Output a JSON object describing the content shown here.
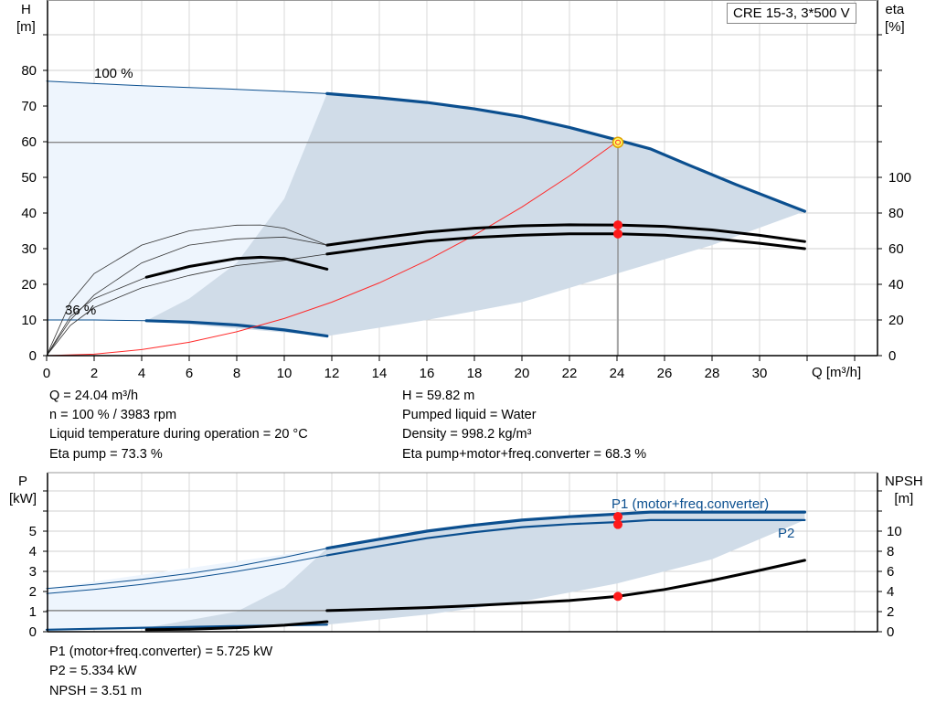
{
  "chart_data": [
    {
      "type": "line",
      "title": "CRE 15-3, 3*500 V",
      "xlabel": "Q [m³/h]",
      "ylabel": "H\n[m]",
      "ylabel_line1": "H",
      "ylabel_line2": "[m]",
      "y2label_line1": "eta",
      "y2label_line2": "[%]",
      "xlim": [
        0,
        35
      ],
      "ylim": [
        0,
        100
      ],
      "y2lim": [
        0,
        200
      ],
      "xticks": [
        0,
        2,
        4,
        6,
        8,
        10,
        12,
        14,
        16,
        18,
        20,
        22,
        24,
        26,
        28,
        30
      ],
      "yticks": [
        0,
        10,
        20,
        30,
        40,
        50,
        60,
        70,
        80
      ],
      "y2ticks": [
        0,
        20,
        40,
        60,
        80,
        100
      ],
      "grid": true,
      "annotations": {
        "speed_max": "100 %",
        "speed_min": "36 %"
      },
      "colors": {
        "head": "#0b4f8f",
        "eta": "#000000",
        "system": "#ff2a2a",
        "operating_region": "#d0dce8",
        "extended_region": "#eef5fd",
        "duty_point": "#ff1a1a",
        "duty_marker": "#ffff66"
      },
      "series": [
        {
          "key": "head_100_thin",
          "axis": "H",
          "style": "thin-blue",
          "points": [
            [
              0,
              77
            ],
            [
              2,
              76.3
            ],
            [
              4,
              75.7
            ],
            [
              6,
              75.2
            ],
            [
              8,
              74.7
            ],
            [
              10,
              74.1
            ],
            [
              11.8,
              73.5
            ]
          ]
        },
        {
          "key": "head_100",
          "axis": "H",
          "style": "thick-blue",
          "points": [
            [
              11.8,
              73.5
            ],
            [
              14,
              72.3
            ],
            [
              16,
              71
            ],
            [
              18,
              69.2
            ],
            [
              20,
              67
            ],
            [
              22,
              64
            ],
            [
              24,
              60.5
            ],
            [
              25.4,
              58
            ],
            [
              27,
              53.5
            ],
            [
              29,
              48
            ],
            [
              31.9,
              40.5
            ]
          ]
        },
        {
          "key": "head_36_thin",
          "axis": "H",
          "style": "thin-blue",
          "points": [
            [
              0,
              10
            ],
            [
              2,
              10
            ],
            [
              4.2,
              9.8
            ]
          ]
        },
        {
          "key": "head_36",
          "axis": "H",
          "style": "thick-blue",
          "points": [
            [
              4.2,
              9.8
            ],
            [
              6,
              9.4
            ],
            [
              8,
              8.6
            ],
            [
              10,
              7.2
            ],
            [
              11.8,
              5.5
            ]
          ]
        },
        {
          "key": "system_curve",
          "axis": "H",
          "style": "red",
          "points": [
            [
              0,
              0
            ],
            [
              2,
              0.4
            ],
            [
              4,
              1.7
            ],
            [
              6,
              3.75
            ],
            [
              8,
              6.7
            ],
            [
              10,
              10.4
            ],
            [
              12,
              15
            ],
            [
              14,
              20.4
            ],
            [
              16,
              26.7
            ],
            [
              18,
              33.8
            ],
            [
              20,
              41.7
            ],
            [
              22,
              50.4
            ],
            [
              24,
              60
            ]
          ]
        },
        {
          "key": "eta_pump_thin",
          "axis": "eta",
          "style": "thin-black",
          "points": [
            [
              0,
              0
            ],
            [
              1,
              20
            ],
            [
              2,
              34
            ],
            [
              4,
              52
            ],
            [
              6,
              62
            ],
            [
              8,
              65.5
            ],
            [
              10,
              66.5
            ],
            [
              11.8,
              62
            ]
          ]
        },
        {
          "key": "eta_pump",
          "axis": "eta",
          "style": "thick-black",
          "points": [
            [
              11.8,
              62
            ],
            [
              14,
              66
            ],
            [
              16,
              69.3
            ],
            [
              18,
              71.5
            ],
            [
              20,
              72.8
            ],
            [
              22,
              73.4
            ],
            [
              24,
              73.3
            ],
            [
              26,
              72.5
            ],
            [
              28,
              70.5
            ],
            [
              30,
              67.5
            ],
            [
              31.9,
              64
            ]
          ]
        },
        {
          "key": "eta_total_thin",
          "axis": "eta",
          "style": "thin-black",
          "points": [
            [
              0,
              0
            ],
            [
              1,
              17
            ],
            [
              2,
              27
            ],
            [
              4,
              38
            ],
            [
              6,
              45
            ],
            [
              8,
              50.5
            ],
            [
              10,
              53.5
            ],
            [
              11.8,
              57
            ]
          ]
        },
        {
          "key": "eta_total",
          "axis": "eta",
          "style": "thick-black",
          "points": [
            [
              11.8,
              57
            ],
            [
              14,
              61
            ],
            [
              16,
              64.2
            ],
            [
              18,
              66.3
            ],
            [
              20,
              67.6
            ],
            [
              22,
              68.3
            ],
            [
              24,
              68.3
            ],
            [
              26,
              67.6
            ],
            [
              28,
              65.8
            ],
            [
              30,
              63
            ],
            [
              31.9,
              60
            ]
          ]
        },
        {
          "key": "eta_36_thin",
          "axis": "eta",
          "style": "thin-black",
          "points": [
            [
              0,
              0
            ],
            [
              1,
              30
            ],
            [
              2,
              46
            ],
            [
              4,
              62
            ],
            [
              6,
              70
            ],
            [
              8,
              73.2
            ],
            [
              9,
              73.3
            ],
            [
              10,
              71.5
            ],
            [
              11.8,
              62
            ]
          ]
        },
        {
          "key": "eta_36_low_thin",
          "axis": "eta",
          "style": "thin-black",
          "points": [
            [
              0,
              0
            ],
            [
              1,
              22
            ],
            [
              2,
              32
            ],
            [
              4.2,
              44
            ]
          ]
        },
        {
          "key": "eta_36",
          "axis": "eta",
          "style": "thick-black",
          "points": [
            [
              4.2,
              44
            ],
            [
              6,
              50
            ],
            [
              8,
              54.5
            ],
            [
              9,
              55.2
            ],
            [
              10,
              54.5
            ],
            [
              11.8,
              48.5
            ]
          ]
        }
      ],
      "regions": {
        "extended": [
          [
            0,
            77
          ],
          [
            11.8,
            73.5
          ],
          [
            11.8,
            5.5
          ],
          [
            4.2,
            9.8
          ],
          [
            0,
            10
          ]
        ],
        "operating_upper": [
          [
            4.2,
            9.8
          ],
          [
            6,
            16
          ],
          [
            8,
            26
          ],
          [
            10,
            44
          ],
          [
            11.8,
            73.5
          ]
        ],
        "operating_lower": [
          [
            11.8,
            5.5
          ],
          [
            16,
            10
          ],
          [
            20,
            15
          ],
          [
            24,
            23
          ],
          [
            28,
            31
          ],
          [
            31.9,
            40.5
          ]
        ]
      },
      "duty_point": {
        "Q": 24.04,
        "H": 59.82,
        "eta_pump": 73.3,
        "eta_total": 68.3
      }
    },
    {
      "type": "line",
      "ylabel_line1": "P",
      "ylabel_line2": "[kW]",
      "y2label_line1": "NPSH",
      "y2label_line2": "[m]",
      "xlim": [
        0,
        35
      ],
      "ylim": [
        0,
        8
      ],
      "y2lim": [
        0,
        16
      ],
      "yticks": [
        0,
        1,
        2,
        3,
        4,
        5
      ],
      "y2ticks": [
        0,
        2,
        4,
        6,
        8,
        10
      ],
      "grid": true,
      "series": [
        {
          "key": "p1_thin",
          "name": "P1 (motor+freq.converter)",
          "axis": "P",
          "style": "thin-blue",
          "points": [
            [
              0,
              2.15
            ],
            [
              2,
              2.35
            ],
            [
              4,
              2.6
            ],
            [
              6,
              2.9
            ],
            [
              8,
              3.25
            ],
            [
              10,
              3.7
            ],
            [
              11.8,
              4.15
            ]
          ]
        },
        {
          "key": "p1",
          "axis": "P",
          "style": "thick-blue",
          "points": [
            [
              11.8,
              4.15
            ],
            [
              14,
              4.6
            ],
            [
              16,
              5
            ],
            [
              18,
              5.3
            ],
            [
              20,
              5.55
            ],
            [
              22,
              5.72
            ],
            [
              24,
              5.85
            ],
            [
              25.4,
              5.95
            ],
            [
              31.9,
              5.95
            ]
          ]
        },
        {
          "key": "p2_thin",
          "name": "P2",
          "axis": "P",
          "style": "thin-blue",
          "points": [
            [
              0,
              1.9
            ],
            [
              2,
              2.1
            ],
            [
              4,
              2.35
            ],
            [
              6,
              2.65
            ],
            [
              8,
              3
            ],
            [
              10,
              3.4
            ],
            [
              11.8,
              3.8
            ]
          ]
        },
        {
          "key": "p2",
          "axis": "P",
          "style": "mid-blue",
          "points": [
            [
              11.8,
              3.8
            ],
            [
              14,
              4.25
            ],
            [
              16,
              4.65
            ],
            [
              18,
              4.95
            ],
            [
              20,
              5.2
            ],
            [
              22,
              5.35
            ],
            [
              24,
              5.45
            ],
            [
              25.4,
              5.55
            ],
            [
              31.9,
              5.55
            ]
          ]
        },
        {
          "key": "p_36",
          "axis": "P",
          "style": "mid-blue",
          "points": [
            [
              0,
              0.1
            ],
            [
              4.2,
              0.2
            ],
            [
              8,
              0.28
            ],
            [
              11.8,
              0.35
            ]
          ]
        },
        {
          "key": "npsh_36",
          "axis": "NPSH",
          "style": "thick-black",
          "points": [
            [
              4.2,
              0.2
            ],
            [
              6,
              0.25
            ],
            [
              8,
              0.4
            ],
            [
              10,
              0.65
            ],
            [
              11.8,
              1
            ]
          ]
        },
        {
          "key": "p_ref_line",
          "axis": "P",
          "style": "grey",
          "points": [
            [
              0,
              1.05
            ],
            [
              11.8,
              1.05
            ]
          ]
        },
        {
          "key": "npsh",
          "axis": "NPSH",
          "style": "thick-black",
          "points": [
            [
              11.8,
              2.1
            ],
            [
              14,
              2.25
            ],
            [
              16,
              2.4
            ],
            [
              18,
              2.6
            ],
            [
              20,
              2.85
            ],
            [
              22,
              3.1
            ],
            [
              24,
              3.51
            ],
            [
              26,
              4.2
            ],
            [
              28,
              5.1
            ],
            [
              30,
              6.1
            ],
            [
              31.9,
              7.1
            ]
          ]
        }
      ],
      "regions": {
        "extended": [
          [
            0,
            2.15
          ],
          [
            11.8,
            4.15
          ],
          [
            11.8,
            0.35
          ],
          [
            0,
            0.1
          ]
        ],
        "operating_upper": [
          [
            4.2,
            0.2
          ],
          [
            8,
            1
          ],
          [
            10,
            2.2
          ],
          [
            11.8,
            4.15
          ]
        ],
        "operating_lower": [
          [
            11.8,
            0.35
          ],
          [
            16,
            0.85
          ],
          [
            20,
            1.5
          ],
          [
            24,
            2.4
          ],
          [
            28,
            3.6
          ],
          [
            31.9,
            5.55
          ]
        ]
      },
      "duty_point": {
        "Q": 24.04,
        "P1": 5.725,
        "P2": 5.334,
        "NPSH": 3.51
      },
      "legend": {
        "p1": "P1 (motor+freq.converter)",
        "p2": "P2"
      }
    }
  ],
  "results": {
    "q": "Q = 24.04 m³/h",
    "n": "n = 100 % / 3983 rpm",
    "temp": "Liquid temperature during operation = 20 °C",
    "eta_pump": "Eta pump = 73.3 %",
    "h": "H = 59.82 m",
    "liquid": "Pumped liquid = Water",
    "density": "Density = 998.2 kg/m³",
    "eta_total": "Eta pump+motor+freq.converter = 68.3 %",
    "p1": "P1 (motor+freq.converter) = 5.725 kW",
    "p2": "P2 = 5.334 kW",
    "npsh": "NPSH = 3.51 m"
  }
}
